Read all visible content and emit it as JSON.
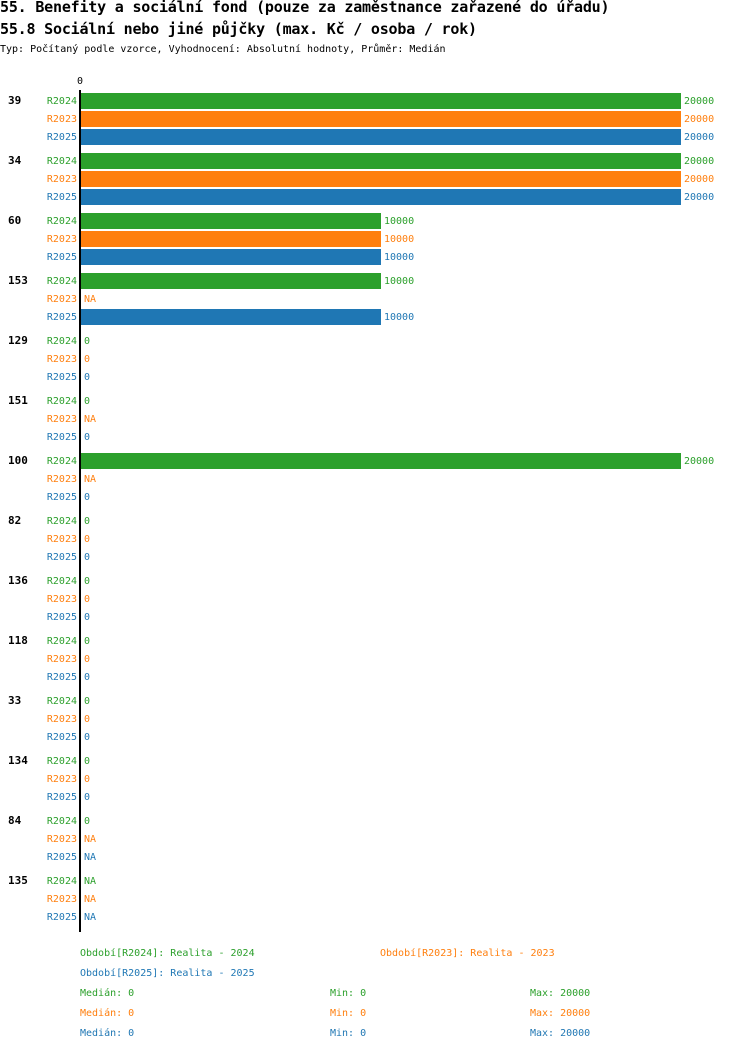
{
  "titles": {
    "main": "55. Benefity a sociální fond (pouze za zaměstnance zařazené do úřadu)",
    "sub": "55.8 Sociální nebo jiné půjčky (max. Kč / osoba / rok)",
    "type_line": "Typ: Počítaný podle vzorce, Vyhodnocení: Absolutní hodnoty, Průměr: Medián"
  },
  "colors": {
    "R2024": "#2ca02c",
    "R2023": "#ff7f0e",
    "R2025": "#1f77b4"
  },
  "chart_data": {
    "type": "bar",
    "orientation": "horizontal",
    "axis_tick_label": "0",
    "xlim": [
      0,
      20000
    ],
    "series_order": [
      "R2024",
      "R2023",
      "R2025"
    ],
    "categories": [
      "39",
      "34",
      "60",
      "153",
      "129",
      "151",
      "100",
      "82",
      "136",
      "118",
      "33",
      "134",
      "84",
      "135"
    ],
    "series": [
      {
        "name": "R2024",
        "values": [
          20000,
          20000,
          10000,
          10000,
          0,
          0,
          20000,
          0,
          0,
          0,
          0,
          0,
          0,
          null
        ]
      },
      {
        "name": "R2023",
        "values": [
          20000,
          20000,
          10000,
          null,
          0,
          null,
          null,
          0,
          0,
          0,
          0,
          0,
          null,
          null
        ]
      },
      {
        "name": "R2025",
        "values": [
          20000,
          20000,
          10000,
          10000,
          0,
          0,
          0,
          0,
          0,
          0,
          0,
          0,
          null,
          null
        ]
      }
    ],
    "na_label": "NA"
  },
  "legend": {
    "r2024": "Období[R2024]: Realita - 2024",
    "r2023": "Období[R2023]: Realita - 2023",
    "r2025": "Období[R2025]: Realita - 2025"
  },
  "stats": [
    {
      "series": "R2024",
      "median": "Medián: 0",
      "min": "Min: 0",
      "max": "Max: 20000"
    },
    {
      "series": "R2023",
      "median": "Medián: 0",
      "min": "Min: 0",
      "max": "Max: 20000"
    },
    {
      "series": "R2025",
      "median": "Medián: 0",
      "min": "Min: 0",
      "max": "Max: 20000"
    }
  ]
}
